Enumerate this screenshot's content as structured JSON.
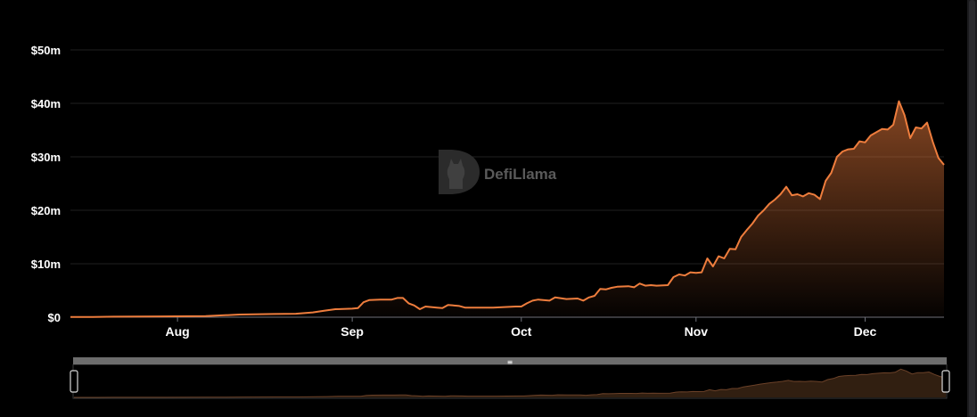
{
  "chart_data": {
    "type": "area",
    "title": "",
    "xlabel": "",
    "ylabel": "",
    "watermark": "DefiLlama",
    "y_ticks": [
      "$0",
      "$10m",
      "$20m",
      "$30m",
      "$40m",
      "$50m"
    ],
    "y_tick_values": [
      0,
      10,
      20,
      30,
      40,
      50
    ],
    "x_ticks": [
      "Aug",
      "Sep",
      "Oct",
      "Nov",
      "Dec"
    ],
    "x_tick_days": [
      19,
      50,
      80,
      111,
      141
    ],
    "x_range_days": [
      0,
      155
    ],
    "ylim": [
      0,
      50
    ],
    "y_unit": "USD millions",
    "grid": true,
    "line_color": "#ee7d3d",
    "series": [
      {
        "values": [
          [
            0,
            0.05
          ],
          [
            4,
            0.05
          ],
          [
            8,
            0.1
          ],
          [
            16,
            0.15
          ],
          [
            24,
            0.2
          ],
          [
            30,
            0.5
          ],
          [
            36,
            0.6
          ],
          [
            40,
            0.65
          ],
          [
            43,
            0.9
          ],
          [
            45,
            1.2
          ],
          [
            47,
            1.5
          ],
          [
            50,
            1.6
          ],
          [
            51,
            1.7
          ],
          [
            52,
            2.8
          ],
          [
            53,
            3.2
          ],
          [
            55,
            3.3
          ],
          [
            57,
            3.3
          ],
          [
            58,
            3.6
          ],
          [
            59,
            3.6
          ],
          [
            60,
            2.6
          ],
          [
            61,
            2.2
          ],
          [
            62,
            1.5
          ],
          [
            63,
            2.0
          ],
          [
            65,
            1.8
          ],
          [
            66,
            1.7
          ],
          [
            67,
            2.3
          ],
          [
            69,
            2.1
          ],
          [
            70,
            1.8
          ],
          [
            75,
            1.8
          ],
          [
            79,
            2.0
          ],
          [
            80,
            2.0
          ],
          [
            81,
            2.6
          ],
          [
            82,
            3.1
          ],
          [
            83,
            3.3
          ],
          [
            85,
            3.1
          ],
          [
            86,
            3.7
          ],
          [
            88,
            3.4
          ],
          [
            90,
            3.5
          ],
          [
            91,
            3.1
          ],
          [
            92,
            3.7
          ],
          [
            93,
            4.0
          ],
          [
            94,
            5.3
          ],
          [
            95,
            5.2
          ],
          [
            96,
            5.5
          ],
          [
            97,
            5.7
          ],
          [
            99,
            5.8
          ],
          [
            100,
            5.6
          ],
          [
            101,
            6.3
          ],
          [
            102,
            5.9
          ],
          [
            103,
            6.0
          ],
          [
            104,
            5.9
          ],
          [
            106,
            6.0
          ],
          [
            107,
            7.5
          ],
          [
            108,
            8.0
          ],
          [
            109,
            7.8
          ],
          [
            110,
            8.4
          ],
          [
            111,
            8.3
          ],
          [
            112,
            8.4
          ],
          [
            113,
            11.0
          ],
          [
            114,
            9.5
          ],
          [
            115,
            11.4
          ],
          [
            116,
            11.0
          ],
          [
            117,
            12.8
          ],
          [
            118,
            12.7
          ],
          [
            119,
            15.0
          ],
          [
            120,
            16.3
          ],
          [
            121,
            17.5
          ],
          [
            122,
            19.0
          ],
          [
            123,
            20.0
          ],
          [
            124,
            21.2
          ],
          [
            125,
            22.0
          ],
          [
            126,
            23.0
          ],
          [
            127,
            24.4
          ],
          [
            128,
            22.8
          ],
          [
            129,
            23.0
          ],
          [
            130,
            22.6
          ],
          [
            131,
            23.2
          ],
          [
            132,
            22.9
          ],
          [
            133,
            22.1
          ],
          [
            134,
            25.5
          ],
          [
            135,
            27.0
          ],
          [
            136,
            30.0
          ],
          [
            137,
            31.0
          ],
          [
            138,
            31.4
          ],
          [
            139,
            31.5
          ],
          [
            140,
            32.9
          ],
          [
            141,
            32.7
          ],
          [
            142,
            34.0
          ],
          [
            143,
            34.6
          ],
          [
            144,
            35.2
          ],
          [
            145,
            35.1
          ],
          [
            146,
            36.0
          ],
          [
            147,
            40.4
          ],
          [
            148,
            37.8
          ],
          [
            149,
            33.5
          ],
          [
            150,
            35.5
          ],
          [
            151,
            35.3
          ],
          [
            152,
            36.4
          ],
          [
            153,
            32.8
          ],
          [
            154,
            29.8
          ],
          [
            155,
            28.5
          ]
        ]
      }
    ]
  },
  "range_slider": {
    "handle_grip": "≡"
  }
}
